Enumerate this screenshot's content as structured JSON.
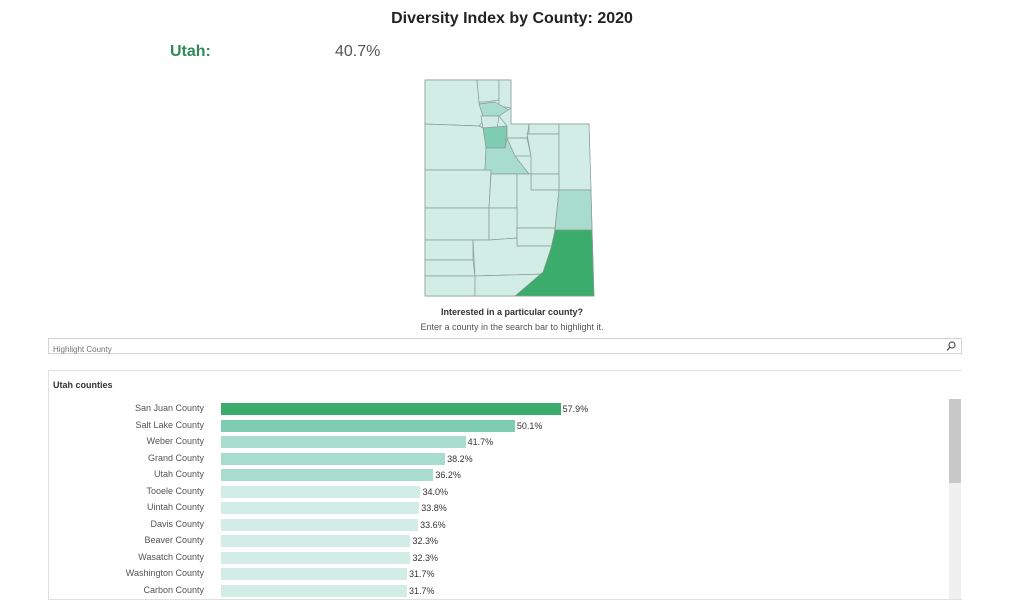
{
  "title": "Diversity Index by County: 2020",
  "state": {
    "name": "Utah:",
    "value": "40.7%"
  },
  "prompt": {
    "title": "Interested in a particular county?",
    "subtitle": "Enter a county in the search bar to highlight it."
  },
  "search": {
    "placeholder": "Highlight County",
    "icon": "search-icon"
  },
  "list": {
    "heading": "Utah counties"
  },
  "colors": {
    "darkest": "#3cac6c",
    "dark": "#7ecdb3",
    "medium": "#a8ddcd",
    "light": "#d2ede5",
    "accent_text": "#2e8b57"
  },
  "chart_data": {
    "type": "bar",
    "orientation": "horizontal",
    "title": "Utah counties",
    "categories": [
      "San Juan County",
      "Salt Lake County",
      "Weber County",
      "Grand County",
      "Utah County",
      "Tooele County",
      "Uintah County",
      "Davis County",
      "Beaver County",
      "Wasatch County",
      "Washington County",
      "Carbon County"
    ],
    "values": [
      57.9,
      50.1,
      41.7,
      38.2,
      36.2,
      34.0,
      33.8,
      33.6,
      32.3,
      32.3,
      31.7,
      31.7
    ],
    "labels": [
      "57.9%",
      "50.1%",
      "41.7%",
      "38.2%",
      "36.2%",
      "34.0%",
      "33.8%",
      "33.6%",
      "32.3%",
      "32.3%",
      "31.7%",
      "31.7%"
    ],
    "xlim": [
      0,
      60
    ],
    "grid": false
  }
}
